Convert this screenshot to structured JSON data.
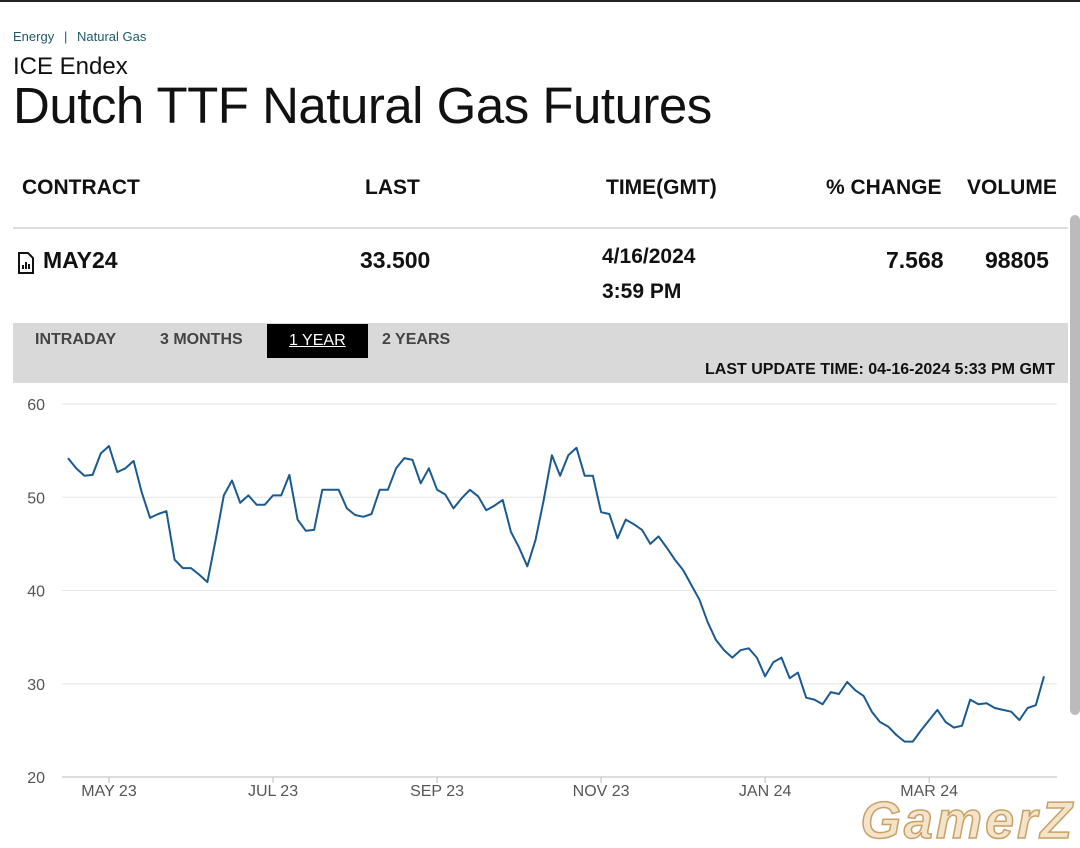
{
  "breadcrumb": [
    "Energy",
    "Natural Gas"
  ],
  "header": {
    "exchange": "ICE Endex",
    "title": "Dutch TTF Natural Gas Futures"
  },
  "table": {
    "headers": [
      "CONTRACT",
      "LAST",
      "TIME(GMT)",
      "% CHANGE",
      "VOLUME"
    ],
    "rows": [
      {
        "contract": "MAY24",
        "last": "33.500",
        "date": "4/16/2024",
        "time": "3:59 PM",
        "change": "7.568",
        "volume": "98805"
      }
    ]
  },
  "tabs": [
    "INTRADAY",
    "3 MONTHS",
    "1 YEAR",
    "2 YEARS"
  ],
  "active_tab": 2,
  "last_update": "LAST UPDATE TIME: 04-16-2024 5:33 PM GMT",
  "watermark": "GamerZ",
  "chart_data": {
    "type": "line",
    "color": "#1b5a8f",
    "grid": true,
    "ylim": [
      20,
      60
    ],
    "yticks": [
      20,
      30,
      40,
      50,
      60
    ],
    "categories": [
      null,
      null,
      null,
      null,
      null,
      "MAY 23",
      null,
      null,
      null,
      null,
      null,
      null,
      null,
      null,
      null,
      null,
      null,
      null,
      null,
      null,
      null,
      null,
      null,
      null,
      null,
      "JUL 23",
      null,
      null,
      null,
      null,
      null,
      null,
      null,
      null,
      null,
      null,
      null,
      null,
      null,
      null,
      null,
      null,
      null,
      null,
      null,
      "SEP 23",
      null,
      null,
      null,
      null,
      null,
      null,
      null,
      null,
      null,
      null,
      null,
      null,
      null,
      null,
      null,
      null,
      null,
      null,
      null,
      "NOV 23",
      null,
      null,
      null,
      null,
      null,
      null,
      null,
      null,
      null,
      null,
      null,
      null,
      null,
      null,
      null,
      null,
      null,
      null,
      null,
      "JAN 24",
      null,
      null,
      null,
      null,
      null,
      null,
      null,
      null,
      null,
      null,
      null,
      null,
      null,
      null,
      null,
      null,
      null,
      null,
      null,
      "MAR 24",
      null,
      null,
      null,
      null,
      null,
      null,
      null,
      null,
      null,
      null,
      null,
      null,
      null,
      null
    ],
    "values": [
      54.2,
      53.1,
      52.3,
      52.4,
      54.7,
      55.5,
      52.7,
      53.1,
      53.9,
      50.5,
      47.8,
      48.2,
      48.5,
      43.3,
      42.4,
      42.4,
      41.7,
      40.9,
      45.4,
      50.2,
      51.8,
      49.4,
      50.2,
      49.2,
      49.2,
      50.2,
      50.2,
      52.4,
      47.6,
      46.4,
      46.5,
      50.8,
      50.8,
      50.8,
      48.8,
      48.1,
      47.9,
      48.2,
      50.8,
      50.8,
      53.1,
      54.2,
      54.0,
      51.5,
      53.1,
      50.8,
      50.3,
      48.8,
      49.9,
      50.8,
      50.1,
      48.6,
      49.1,
      49.7,
      46.3,
      44.6,
      42.6,
      45.4,
      49.7,
      54.5,
      52.3,
      54.5,
      55.3,
      52.3,
      52.3,
      48.4,
      48.2,
      45.6,
      47.6,
      47.1,
      46.5,
      45.0,
      45.8,
      44.6,
      43.3,
      42.2,
      40.6,
      39.0,
      36.6,
      34.7,
      33.6,
      32.8,
      33.6,
      33.8,
      32.8,
      30.8,
      32.3,
      32.8,
      30.6,
      31.2,
      28.5,
      28.3,
      27.8,
      29.1,
      28.9,
      30.2,
      29.3,
      28.7,
      27.0,
      25.9,
      25.4,
      24.5,
      23.8,
      23.8,
      25.0,
      26.1,
      27.2,
      25.9,
      25.3,
      25.5,
      28.3,
      27.8,
      27.9,
      27.4,
      27.2,
      27.0,
      26.1,
      27.4,
      27.7,
      30.8
    ]
  }
}
